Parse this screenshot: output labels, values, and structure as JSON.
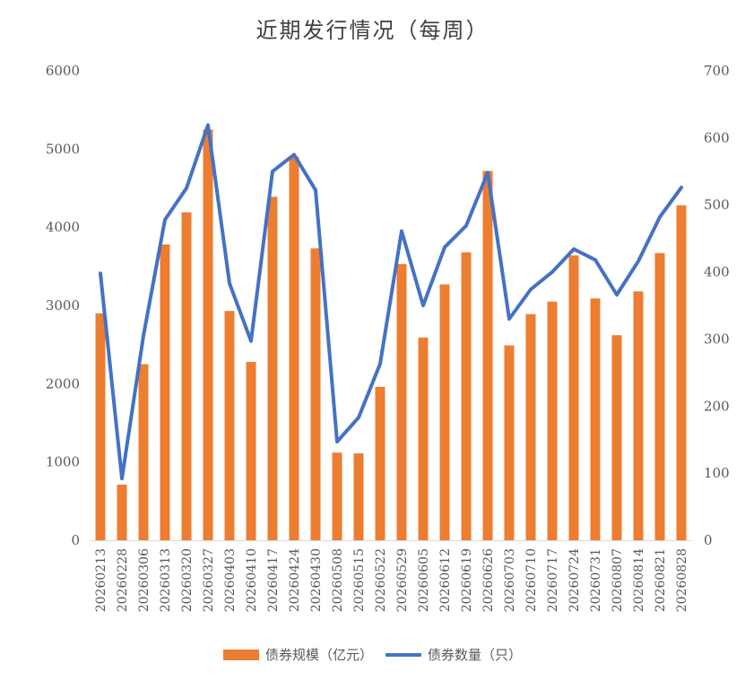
{
  "chart_data": {
    "type": "bar",
    "title": "近期发行情况（每周）",
    "categories": [
      "20260213",
      "20260228",
      "20260306",
      "20260313",
      "20260320",
      "20260327",
      "20260403",
      "20260410",
      "20260417",
      "20260424",
      "20260430",
      "20260508",
      "20260515",
      "20260522",
      "20260529",
      "20260605",
      "20260612",
      "20260619",
      "20260626",
      "20260703",
      "20260710",
      "20260717",
      "20260724",
      "20260731",
      "20260807",
      "20260814",
      "20260821",
      "20260828"
    ],
    "series": [
      {
        "name": "债券规模（亿元）",
        "type": "bar",
        "axis": "left",
        "color": "#ED7D31",
        "values": [
          2900,
          710,
          2250,
          3780,
          4190,
          5250,
          2930,
          2280,
          4390,
          4900,
          3730,
          1120,
          1110,
          1960,
          3530,
          2590,
          3270,
          3680,
          4720,
          2490,
          2890,
          3050,
          3640,
          3090,
          2620,
          3180,
          3670,
          4280
        ]
      },
      {
        "name": "债券数量（只）",
        "type": "line",
        "axis": "right",
        "color": "#4472C4",
        "values": [
          398,
          92,
          305,
          478,
          525,
          619,
          383,
          297,
          550,
          575,
          522,
          147,
          183,
          263,
          461,
          350,
          437,
          469,
          548,
          330,
          374,
          400,
          434,
          418,
          366,
          416,
          482,
          526
        ]
      }
    ],
    "y_left": {
      "min": 0,
      "max": 6000,
      "ticks": [
        "0",
        "1000",
        "2000",
        "3000",
        "4000",
        "5000",
        "6000"
      ]
    },
    "y_right": {
      "min": 0,
      "max": 700,
      "ticks": [
        "0",
        "100",
        "200",
        "300",
        "400",
        "500",
        "600",
        "700"
      ]
    },
    "grid": false,
    "legend_position": "bottom"
  }
}
